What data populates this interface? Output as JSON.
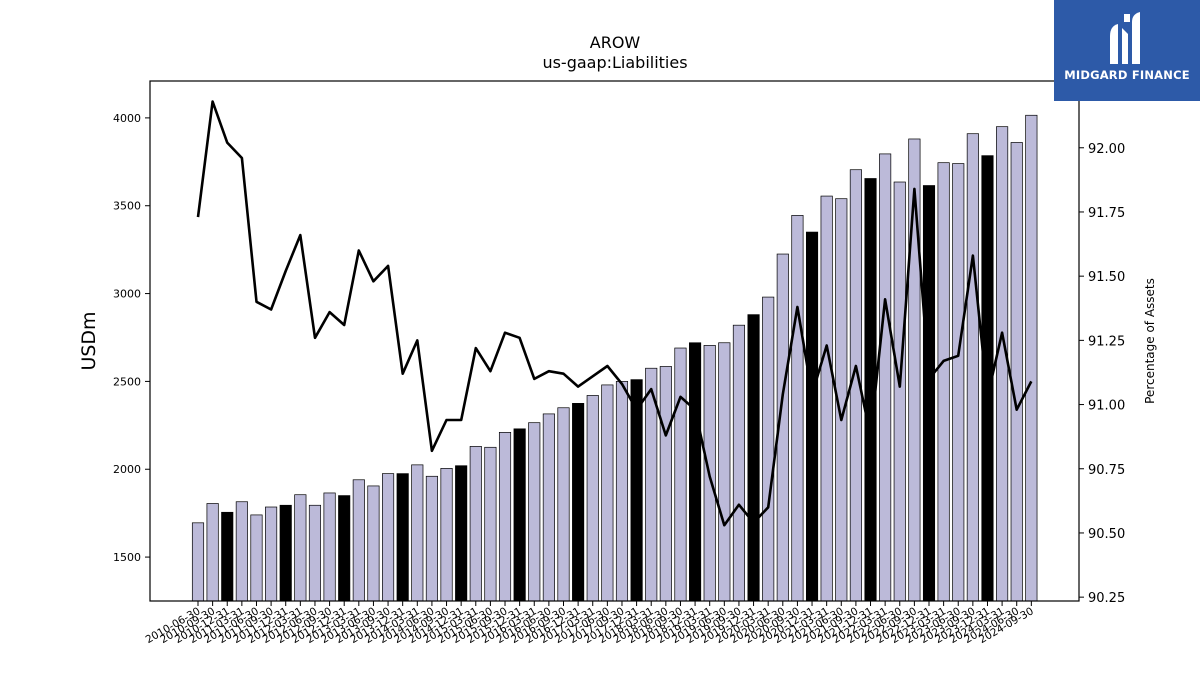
{
  "brand": {
    "name": "MIDGARD FINANCE",
    "logo_icon": "midgard-logo-icon",
    "logo_bg": "#2d5aa8"
  },
  "chart_data": {
    "type": "bar",
    "title": "AROW",
    "subtitle": "us-gaap:Liabilities",
    "ylabel": "USDm",
    "y2label": "Percentage of Assets",
    "ylim": [
      1250,
      4210
    ],
    "y2lim": [
      90.235,
      92.26
    ],
    "yticks": [
      1500,
      2000,
      2500,
      3000,
      3500,
      4000
    ],
    "y2ticks": [
      "90.25",
      "90.50",
      "90.75",
      "91.00",
      "91.25",
      "91.50",
      "91.75",
      "92.00"
    ],
    "colors": {
      "bar": "#bcbad9",
      "bar_q4": "#000000",
      "line": "#000000"
    },
    "categories": [
      "2010-06-30",
      "2010-09-30",
      "2010-12-31",
      "2011-03-31",
      "2011-06-30",
      "2011-09-30",
      "2011-12-31",
      "2012-03-31",
      "2012-06-30",
      "2012-09-30",
      "2012-12-31",
      "2013-03-31",
      "2013-06-30",
      "2013-09-30",
      "2013-12-31",
      "2014-03-31",
      "2014-06-30",
      "2014-09-30",
      "2014-12-31",
      "2015-03-31",
      "2015-06-30",
      "2015-09-30",
      "2015-12-31",
      "2016-03-31",
      "2016-06-30",
      "2016-09-30",
      "2016-12-31",
      "2017-03-31",
      "2017-06-30",
      "2017-09-30",
      "2017-12-31",
      "2018-03-31",
      "2018-06-30",
      "2018-09-30",
      "2018-12-31",
      "2019-03-31",
      "2019-06-30",
      "2019-09-30",
      "2019-12-31",
      "2020-03-31",
      "2020-06-30",
      "2020-09-30",
      "2020-12-31",
      "2021-03-31",
      "2021-06-30",
      "2021-09-30",
      "2021-12-31",
      "2022-03-31",
      "2022-06-30",
      "2022-09-30",
      "2022-12-31",
      "2023-03-31",
      "2023-06-30",
      "2023-09-30",
      "2023-12-31",
      "2024-03-31",
      "2024-06-30",
      "2024-09-30"
    ],
    "series": [
      {
        "name": "Liabilities",
        "kind": "bar",
        "values": [
          1695,
          1805,
          1755,
          1815,
          1740,
          1785,
          1795,
          1855,
          1795,
          1865,
          1850,
          1940,
          1905,
          1975,
          1975,
          2025,
          1960,
          2005,
          2020,
          2130,
          2125,
          2210,
          2230,
          2265,
          2315,
          2350,
          2375,
          2420,
          2480,
          2500,
          2510,
          2575,
          2585,
          2690,
          2720,
          2705,
          2720,
          2820,
          2880,
          2980,
          3225,
          3445,
          3350,
          3555,
          3540,
          3705,
          3655,
          3795,
          3635,
          3880,
          3615,
          3745,
          3740,
          3910,
          3785,
          3950,
          3860,
          4015
        ]
      },
      {
        "name": "Percentage of Assets",
        "kind": "line",
        "values": [
          91.73,
          92.18,
          92.02,
          91.96,
          91.4,
          91.37,
          91.52,
          91.66,
          91.26,
          91.36,
          91.31,
          91.6,
          91.48,
          91.54,
          91.12,
          91.25,
          90.82,
          90.94,
          90.94,
          91.22,
          91.13,
          91.28,
          91.26,
          91.1,
          91.13,
          91.12,
          91.07,
          91.11,
          91.15,
          91.08,
          90.98,
          91.06,
          90.88,
          91.03,
          90.98,
          90.72,
          90.53,
          90.61,
          90.54,
          90.6,
          91.04,
          91.38,
          91.04,
          91.23,
          90.94,
          91.15,
          90.88,
          91.41,
          91.07,
          91.84,
          91.1,
          91.17,
          91.19,
          91.58,
          91.03,
          91.28,
          90.98,
          91.09
        ]
      }
    ],
    "grid": false,
    "legend": "none"
  }
}
